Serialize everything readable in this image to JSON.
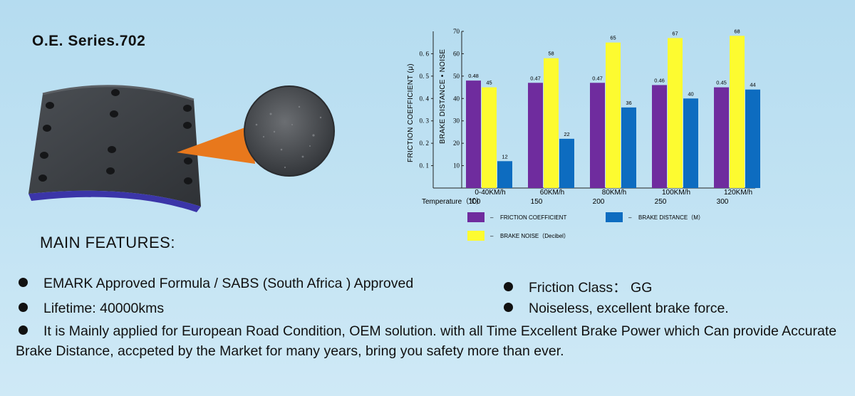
{
  "header": {
    "series_title": "O.E. Series.702"
  },
  "product": {
    "shoe_color": "#3e4246",
    "backing_color": "#3b35a8",
    "pointer_color": "#e8781c"
  },
  "chart_data": {
    "type": "bar",
    "categories": [
      "0-40KM/h",
      "60KM/h",
      "80KM/h",
      "100KM/h",
      "120KM/h"
    ],
    "temperature_label": "Temperature（℃）",
    "temperatures": [
      "100",
      "150",
      "200",
      "250",
      "300"
    ],
    "left_axis_label": "FRICTION  COEFFICIENT (μ)",
    "right_axis_label": "BRAKE DISTANCE  •  NOISE",
    "left_ticks": [
      "0. 1",
      "0. 2",
      "0. 3",
      "0. 4",
      "0. 5",
      "0. 6"
    ],
    "right_ticks": [
      "10",
      "20",
      "30",
      "40",
      "50",
      "60",
      "70"
    ],
    "left_ylim": [
      0,
      0.7
    ],
    "right_ylim": [
      0,
      70
    ],
    "series": [
      {
        "name": "FRICTION COEFFICIENT",
        "axis": "left",
        "color": "#6f2c9e",
        "values": [
          0.48,
          0.47,
          0.47,
          0.46,
          0.45
        ],
        "labels": [
          "0.48",
          "0.47",
          "0.47",
          "0.46",
          "0.45"
        ]
      },
      {
        "name": "BRAKE NOISE（Decibel）",
        "axis": "right",
        "color": "#fdfb30",
        "values": [
          45,
          58,
          65,
          67,
          68
        ],
        "labels": [
          "45",
          "58",
          "65",
          "67",
          "68"
        ]
      },
      {
        "name": "BRAKE DISTANCE（M）",
        "axis": "right",
        "color": "#0d6cc0",
        "values": [
          12,
          22,
          36,
          40,
          44
        ],
        "labels": [
          "12",
          "22",
          "36",
          "40",
          "44"
        ]
      }
    ],
    "legend": [
      {
        "label": "FRICTION COEFFICIENT",
        "color": "#6f2c9e"
      },
      {
        "label": "BRAKE DISTANCE（M）",
        "color": "#0d6cc0"
      },
      {
        "label": "BRAKE NOISE（Decibel）",
        "color": "#fdfb30"
      }
    ],
    "legend_dash": "–"
  },
  "features": {
    "heading": "MAIN FEATURES:",
    "emark": "EMARK  Approved Formula / SABS  (South Africa )  Approved",
    "friction_class": "Friction Class：  GG",
    "lifetime": "Lifetime:  40000kms",
    "noiseless": "Noiseless,  excellent brake force.",
    "description": "It is Mainly applied for European Road Condition, OEM solution. with all Time Excellent Brake Power which Can provide  Accurate  Brake Distance,    accpeted by the Market for many years,    bring you safety more than ever."
  }
}
